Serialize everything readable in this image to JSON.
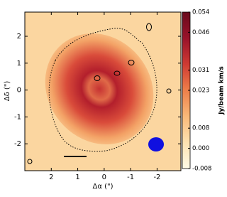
{
  "chart_data": {
    "type": "image",
    "xlabel": "Δα (\")",
    "ylabel": "Δδ (\")",
    "colorbar_label": "Jy/beam km/s",
    "xlim": [
      3,
      -2.9
    ],
    "xticks": [
      2,
      1,
      0,
      -1,
      -2
    ],
    "ylim": [
      -3,
      2.9
    ],
    "yticks": [
      2,
      1,
      0,
      -1,
      -2
    ],
    "clim": [
      -0.008,
      0.054
    ],
    "cticks": [
      0.054,
      0.046,
      0.031,
      0.023,
      0.008,
      {
        "value": 0,
        "label": "0.000"
      },
      -0.008
    ],
    "colormap": [
      "#fffbe6",
      "#fde2b0",
      "#f9b978",
      "#ee7f4a",
      "#cf3a33",
      "#99122a",
      "#6a0a1c"
    ]
  }
}
